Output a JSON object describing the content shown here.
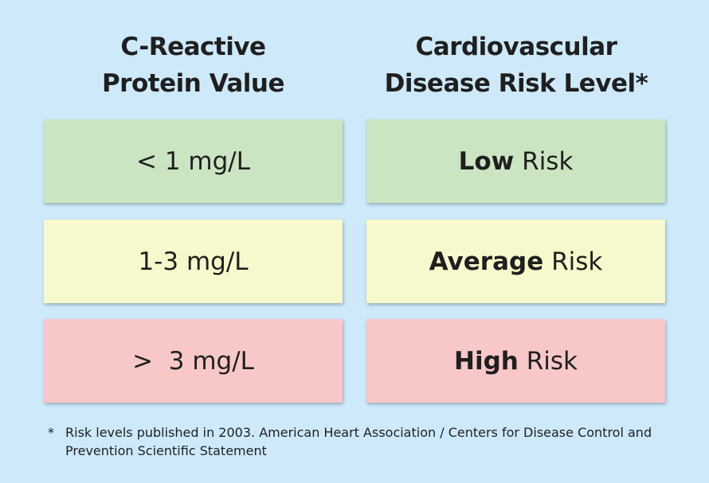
{
  "headings": {
    "left": [
      "C-Reactive",
      "Protein Value"
    ],
    "right": [
      "Cardiovascular",
      "Disease Risk Level*"
    ]
  },
  "rows": [
    {
      "value": "< 1 mg/L",
      "level": "Low",
      "suffix": " Risk",
      "color": "#cbe5c3"
    },
    {
      "value": "1-3 mg/L",
      "level": "Average",
      "suffix": " Risk",
      "color": "#f7f8cb"
    },
    {
      "value": ">  3 mg/L",
      "level": "High",
      "suffix": " Risk",
      "color": "#f8c8c8"
    }
  ],
  "footnote": {
    "marker": "*",
    "lines": [
      "Risk levels published in 2003. American Heart Association / Centers for Disease Control and",
      "Prevention Scientific Statement"
    ]
  },
  "colors": {
    "background": "#cde9fa",
    "text": "#1f1f1f"
  }
}
